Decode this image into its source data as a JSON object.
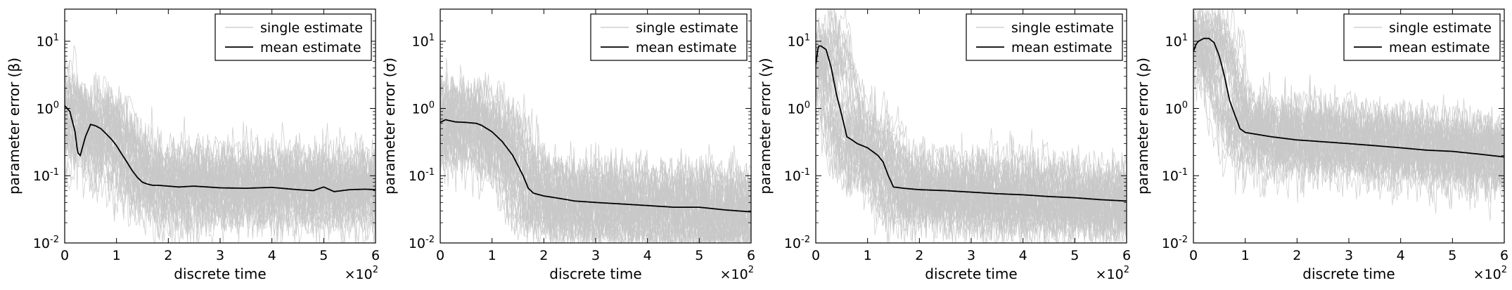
{
  "chart_data": [
    {
      "type": "line",
      "xlabel": "discrete time",
      "ylabel": "parameter error (β)",
      "x_multiplier_label": "×10",
      "x_multiplier_exp": "2",
      "x_ticks": [
        "0",
        "1",
        "2",
        "3",
        "4",
        "5",
        "6"
      ],
      "y_ticks": [
        "10",
        "10",
        "10",
        "10"
      ],
      "y_tick_exps": [
        "-2",
        "-1",
        "0",
        "1"
      ],
      "yscale": "log",
      "xlim": [
        0,
        6
      ],
      "ylim": [
        0.01,
        30
      ],
      "grid": false,
      "legend_position": "top-right",
      "legend": [
        "single estimate",
        "mean estimate"
      ],
      "colors": {
        "single": "#c8c8c8",
        "mean": "#000000"
      },
      "series": [
        {
          "name": "mean estimate",
          "x": [
            0,
            0.1,
            0.2,
            0.25,
            0.3,
            0.4,
            0.5,
            0.6,
            0.7,
            0.8,
            0.9,
            1.0,
            1.1,
            1.2,
            1.3,
            1.4,
            1.5,
            1.6,
            1.7,
            1.8,
            2.0,
            2.2,
            2.5,
            3.0,
            3.5,
            4.0,
            4.5,
            4.8,
            5.0,
            5.2,
            5.5,
            5.8,
            6.0
          ],
          "y": [
            1.1,
            0.9,
            0.45,
            0.22,
            0.2,
            0.38,
            0.58,
            0.55,
            0.5,
            0.42,
            0.35,
            0.28,
            0.21,
            0.16,
            0.12,
            0.095,
            0.08,
            0.075,
            0.072,
            0.072,
            0.07,
            0.068,
            0.07,
            0.066,
            0.065,
            0.067,
            0.062,
            0.06,
            0.068,
            0.058,
            0.062,
            0.063,
            0.062
          ]
        }
      ]
    },
    {
      "type": "line",
      "xlabel": "discrete time",
      "ylabel": "parameter error (σ)",
      "x_multiplier_label": "×10",
      "x_multiplier_exp": "2",
      "x_ticks": [
        "0",
        "1",
        "2",
        "3",
        "4",
        "5",
        "6"
      ],
      "y_ticks": [
        "10",
        "10",
        "10",
        "10"
      ],
      "y_tick_exps": [
        "-2",
        "-1",
        "0",
        "1"
      ],
      "yscale": "log",
      "xlim": [
        0,
        6
      ],
      "ylim": [
        0.01,
        30
      ],
      "grid": false,
      "legend_position": "top-right",
      "legend": [
        "single estimate",
        "mean estimate"
      ],
      "colors": {
        "single": "#c8c8c8",
        "mean": "#000000"
      },
      "series": [
        {
          "name": "mean estimate",
          "x": [
            0,
            0.1,
            0.3,
            0.5,
            0.7,
            0.8,
            1.0,
            1.2,
            1.4,
            1.6,
            1.7,
            1.8,
            2.0,
            2.3,
            2.6,
            3.0,
            3.5,
            4.0,
            4.5,
            5.0,
            5.5,
            6.0
          ],
          "y": [
            0.62,
            0.68,
            0.63,
            0.62,
            0.6,
            0.56,
            0.45,
            0.32,
            0.2,
            0.1,
            0.065,
            0.055,
            0.05,
            0.046,
            0.042,
            0.04,
            0.038,
            0.036,
            0.034,
            0.034,
            0.031,
            0.029
          ]
        }
      ]
    },
    {
      "type": "line",
      "xlabel": "discrete time",
      "ylabel": "parameter error (γ)",
      "x_multiplier_label": "×10",
      "x_multiplier_exp": "2",
      "x_ticks": [
        "0",
        "1",
        "2",
        "3",
        "4",
        "5",
        "6"
      ],
      "y_ticks": [
        "10",
        "10",
        "10",
        "10"
      ],
      "y_tick_exps": [
        "-2",
        "-1",
        "0",
        "1"
      ],
      "yscale": "log",
      "xlim": [
        0,
        6
      ],
      "ylim": [
        0.01,
        30
      ],
      "grid": false,
      "legend_position": "top-right",
      "legend": [
        "single estimate",
        "mean estimate"
      ],
      "colors": {
        "single": "#c8c8c8",
        "mean": "#000000"
      },
      "series": [
        {
          "name": "mean estimate",
          "x": [
            0,
            0.05,
            0.1,
            0.2,
            0.3,
            0.4,
            0.5,
            0.6,
            0.7,
            0.8,
            1.0,
            1.2,
            1.3,
            1.4,
            1.5,
            1.7,
            2.0,
            2.5,
            3.0,
            3.5,
            4.0,
            4.5,
            5.0,
            5.5,
            6.0
          ],
          "y": [
            4.5,
            8.5,
            8.5,
            7.5,
            4.0,
            1.6,
            0.8,
            0.38,
            0.34,
            0.3,
            0.26,
            0.2,
            0.16,
            0.1,
            0.068,
            0.065,
            0.062,
            0.06,
            0.057,
            0.054,
            0.052,
            0.049,
            0.047,
            0.044,
            0.042
          ]
        }
      ]
    },
    {
      "type": "line",
      "xlabel": "discrete time",
      "ylabel": "parameter error (ρ)",
      "x_multiplier_label": "×10",
      "x_multiplier_exp": "2",
      "x_ticks": [
        "0",
        "1",
        "2",
        "3",
        "4",
        "5",
        "6"
      ],
      "y_ticks": [
        "10",
        "10",
        "10",
        "10"
      ],
      "y_tick_exps": [
        "-2",
        "-1",
        "0",
        "1"
      ],
      "yscale": "log",
      "xlim": [
        0,
        6
      ],
      "ylim": [
        0.01,
        30
      ],
      "grid": false,
      "legend_position": "top-right",
      "legend": [
        "single estimate",
        "mean estimate"
      ],
      "colors": {
        "single": "#c8c8c8",
        "mean": "#000000"
      },
      "series": [
        {
          "name": "mean estimate",
          "x": [
            0,
            0.05,
            0.1,
            0.2,
            0.3,
            0.4,
            0.5,
            0.6,
            0.7,
            0.8,
            0.9,
            1.0,
            1.5,
            2.0,
            2.5,
            3.0,
            3.5,
            4.0,
            4.5,
            5.0,
            5.5,
            6.0
          ],
          "y": [
            7,
            9,
            10,
            11,
            11,
            9.5,
            6,
            3,
            1.3,
            0.8,
            0.5,
            0.44,
            0.38,
            0.34,
            0.32,
            0.3,
            0.28,
            0.26,
            0.24,
            0.23,
            0.21,
            0.19
          ]
        }
      ]
    }
  ]
}
